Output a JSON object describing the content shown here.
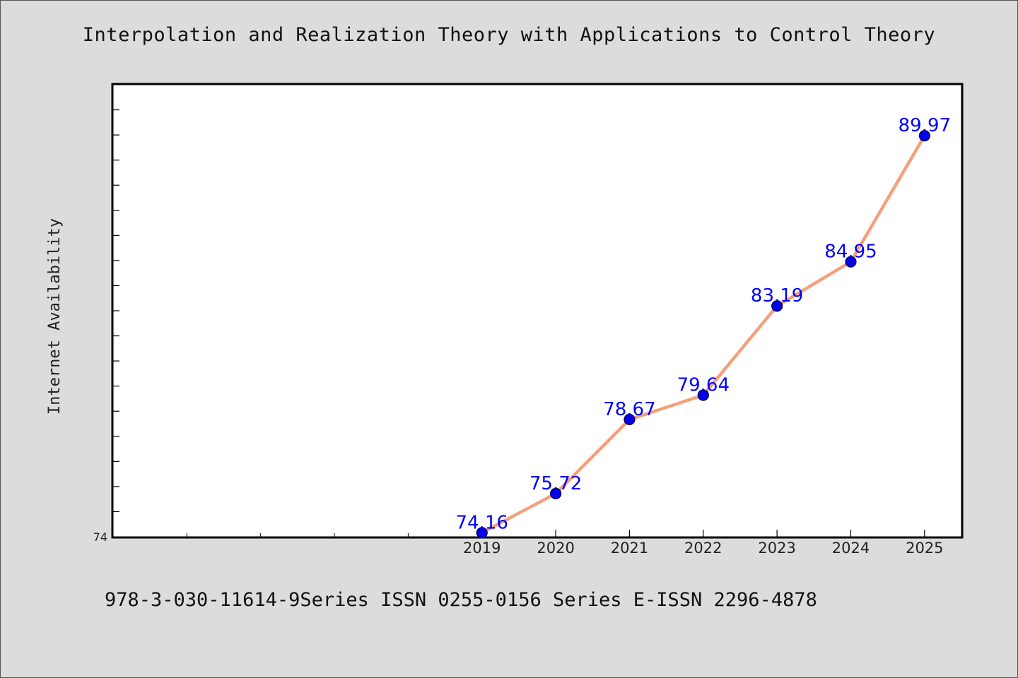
{
  "header": {
    "title": "Interpolation and Realization Theory with Applications to Control Theory"
  },
  "footer": {
    "text": "978-3-030-11614-9Series ISSN 0255-0156 Series E-ISSN 2296-4878"
  },
  "chart_data": {
    "type": "line",
    "title": "Interpolation and Realization Theory with Applications to Control Theory",
    "xlabel": "",
    "ylabel": "Internet Availability",
    "x": [
      "2019",
      "2020",
      "2021",
      "2022",
      "2023",
      "2024",
      "2025"
    ],
    "series": [
      {
        "values": [
          74.16,
          75.72,
          78.67,
          79.64,
          83.19,
          84.95,
          89.97
        ]
      }
    ],
    "data_labels": [
      "74.16",
      "75.72",
      "78.67",
      "79.64",
      "83.19",
      "84.95",
      "89.97"
    ],
    "y_tick_labels": [
      "74"
    ],
    "xlim": [
      2014,
      2025.5
    ],
    "ylim": [
      74,
      92
    ],
    "grid": false,
    "line_color": "#f4a07c",
    "marker_color": "#0000ee",
    "label_color": "#0000ff"
  }
}
